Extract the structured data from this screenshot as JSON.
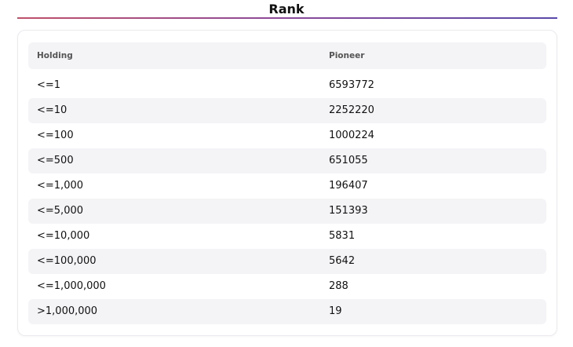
{
  "title": "Rank",
  "table": {
    "columns": [
      "Holding",
      "Pioneer"
    ],
    "rows": [
      [
        "<=1",
        6593772
      ],
      [
        "<=10",
        2252220
      ],
      [
        "<=100",
        1000224
      ],
      [
        "<=500",
        651055
      ],
      [
        "<=1,000",
        196407
      ],
      [
        "<=5,000",
        151393
      ],
      [
        "<=10,000",
        5831
      ],
      [
        "<=100,000",
        5642
      ],
      [
        "<=1,000,000",
        288
      ],
      [
        ">1,000,000",
        19
      ]
    ]
  }
}
